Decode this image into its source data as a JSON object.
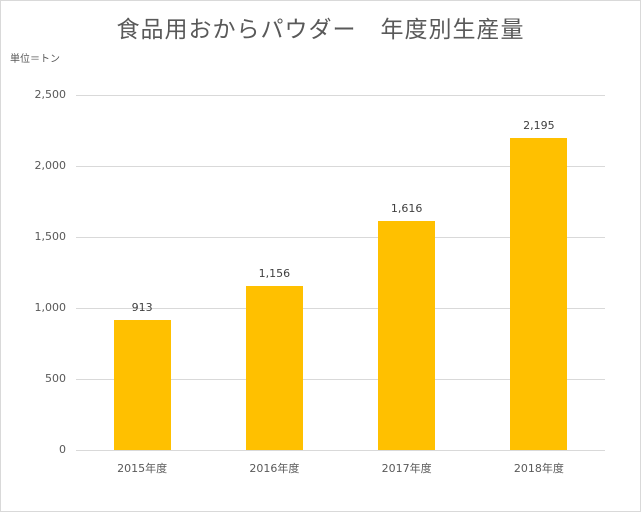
{
  "chart_data": {
    "type": "bar",
    "title": "食品用おからパウダー　年度別生産量",
    "unit_label": "単位＝トン",
    "xlabel": "",
    "ylabel": "単位＝トン",
    "categories": [
      "2015年度",
      "2016年度",
      "2017年度",
      "2018年度"
    ],
    "values": [
      913,
      1156,
      1616,
      2195
    ],
    "value_labels": [
      "913",
      "1,156",
      "1,616",
      "2,195"
    ],
    "ylim": [
      0,
      2500
    ],
    "yticks": [
      0,
      500,
      1000,
      1500,
      2000,
      2500
    ],
    "ytick_labels": [
      "0",
      "500",
      "1,000",
      "1,500",
      "2,000",
      "2,500"
    ],
    "grid": true,
    "legend": null,
    "bar_color": "#ffc000"
  }
}
